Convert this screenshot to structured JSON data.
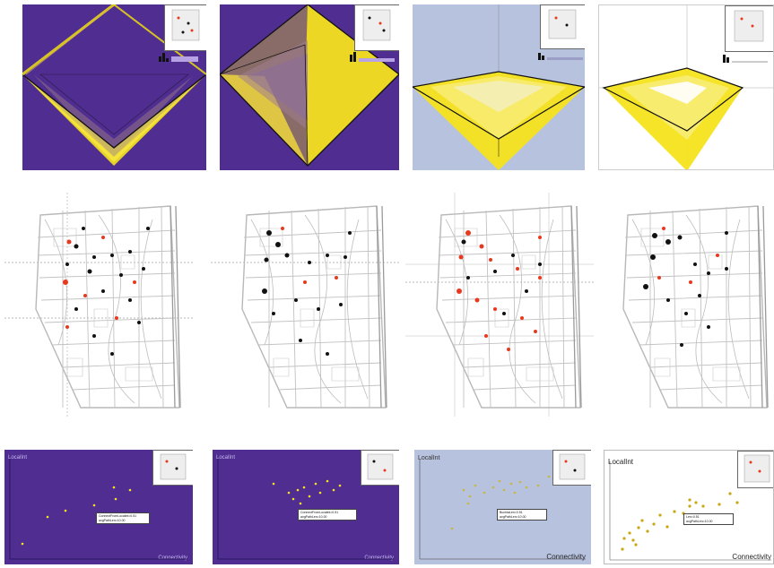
{
  "colors": {
    "purple": "#4f2d91",
    "lavender": "#b7c2df",
    "white": "#ffffff",
    "yellow": "#f6e31d",
    "red": "#e8381e",
    "black": "#111111"
  },
  "bottom_row": [
    {
      "ylabel": "LocalInt",
      "xlabel": "Connectivity",
      "info": [
        "ConnectFromLocalint=0.51",
        "avgPathLen=10.00"
      ]
    },
    {
      "ylabel": "LocalInt",
      "xlabel": "Connectivity",
      "info": [
        "ConnectFromLocalint=0.51",
        "avgPathLen=10.00"
      ]
    },
    {
      "ylabel": "LocalInt",
      "xlabel": "Connectivity",
      "info": [
        "BuchtaLen=0.51",
        "avgPathLen=10.00"
      ]
    },
    {
      "ylabel": "LocalInt",
      "xlabel": "Connectivity",
      "info": [
        "Len=0.51",
        "avgPathLen=10.00"
      ]
    }
  ]
}
